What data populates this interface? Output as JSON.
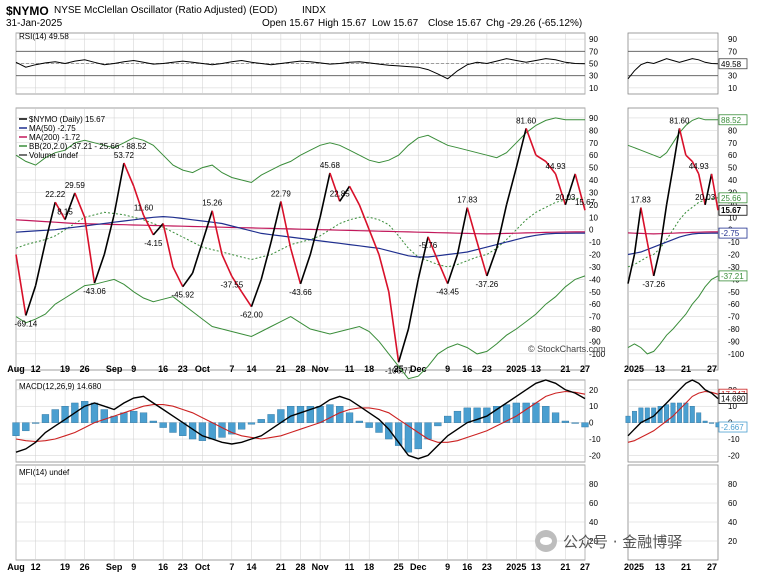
{
  "header": {
    "symbol": "$NYMO",
    "description": "NYSE McClellan Oscillator (Ratio Adjusted) (EOD)",
    "exchange": "INDX",
    "date": "31-Jan-2025",
    "open": "Open 15.67",
    "high": "High 15.67",
    "low": "Low 15.67",
    "close": "Close 15.67",
    "change": "Chg -29.26 (-65.12%)",
    "credit": "© StockCharts.com"
  },
  "colors": {
    "price": "#000000",
    "down": "#d8102a",
    "ma50": "#1f2f8f",
    "ma200": "#c2185b",
    "bb": "#3a8d3a",
    "macd": "#000000",
    "signal": "#cc2222",
    "hist": "#4a9fd0",
    "grid": "#cfcfcf"
  },
  "chart_data": [
    {
      "type": "line",
      "panel": "RSI",
      "label": "RSI(14) 49.58",
      "yticks": [
        90,
        70,
        50,
        30,
        10
      ],
      "ylim": [
        0,
        100
      ],
      "last_value": "49.58",
      "values": [
        52,
        44,
        48,
        51,
        53,
        50,
        54,
        56,
        52,
        48,
        50,
        53,
        55,
        52,
        49,
        50,
        52,
        54,
        52,
        50,
        48,
        50,
        53,
        55,
        52,
        50,
        48,
        50,
        52,
        54,
        53,
        51,
        49,
        50,
        52,
        53,
        51,
        49,
        47,
        46,
        45,
        44,
        40,
        33,
        25,
        38,
        48,
        52,
        50,
        54,
        58,
        55,
        52,
        55,
        58,
        56,
        52,
        50,
        49.58
      ]
    },
    {
      "type": "line",
      "panel": "main",
      "legend": [
        "$NYMO (Daily) 15.67",
        "MA(50) -2.75",
        "MA(200) -1.72",
        "BB(20,2.0) -37.21 - 25.66 - 88.52",
        "Volume undef"
      ],
      "yticks": [
        90,
        80,
        70,
        60,
        50,
        40,
        30,
        20,
        10,
        0,
        -10,
        -20,
        -30,
        -40,
        -50,
        -60,
        -70,
        -80,
        -90,
        -100
      ],
      "ylim": [
        -113,
        98
      ],
      "x_labels": [
        "Aug",
        "12",
        "19",
        "26",
        "Sep",
        "9",
        "16",
        "23",
        "Oct",
        "7",
        "14",
        "21",
        "28",
        "Nov",
        "11",
        "18",
        "25",
        "Dec",
        "9",
        "16",
        "23",
        "2025",
        "13",
        "21",
        "27"
      ],
      "annotations": [
        "-69.14",
        "22.22",
        "8.15",
        "29.59",
        "-43.06",
        "53.72",
        "11.60",
        "-4.15",
        "-45.92",
        "15.26",
        "-37.55",
        "-62.00",
        "22.79",
        "-43.66",
        "45.68",
        "22.85",
        "-106.77",
        "-5.76",
        "-43.45",
        "17.83",
        "-37.26",
        "81.60",
        "44.93",
        "20.03",
        "15.67"
      ],
      "values": [
        -20,
        -69.14,
        -45,
        -10,
        22.22,
        8.15,
        29.59,
        10,
        -43.06,
        -20,
        12,
        53.72,
        35,
        11.6,
        -4.15,
        5,
        -30,
        -45.92,
        -35,
        -10,
        15.26,
        -20,
        -37.55,
        -50,
        -62,
        -40,
        -10,
        22.79,
        -15,
        -43.66,
        -20,
        10,
        45.68,
        22.85,
        35,
        20,
        0,
        -20,
        -50,
        -106.77,
        -80,
        -40,
        -5.76,
        -25,
        -43.45,
        -20,
        17.83,
        -10,
        -37.26,
        -15,
        20,
        50,
        81.6,
        60,
        55,
        44.93,
        20.03,
        44.93,
        15.67
      ],
      "ma50": [
        -2,
        -1.5,
        -1,
        -0.5,
        0,
        1,
        2,
        3,
        4,
        5,
        6,
        7,
        8,
        9,
        10,
        10.5,
        10,
        9,
        8,
        7,
        6,
        5,
        3,
        1,
        -1,
        -3,
        -4,
        -5,
        -6,
        -7,
        -8,
        -9,
        -10,
        -11,
        -12,
        -13,
        -14,
        -15,
        -17,
        -19,
        -21,
        -22,
        -22,
        -21,
        -20,
        -19,
        -18,
        -16,
        -14,
        -12,
        -10,
        -8,
        -6,
        -4.5,
        -3.5,
        -3,
        -2.9,
        -2.8,
        -2.75
      ],
      "ma200": [
        8,
        7.5,
        7,
        6.5,
        6,
        5.5,
        5,
        4.8,
        4.6,
        4.4,
        4.2,
        4,
        3.8,
        3.6,
        3.4,
        3.2,
        3,
        2.8,
        2.6,
        2.4,
        2.2,
        2,
        1.8,
        1.6,
        1.4,
        1.2,
        1,
        0.8,
        0.6,
        0.4,
        0.2,
        0,
        -0.2,
        -0.4,
        -0.6,
        -0.8,
        -1,
        -1.2,
        -1.4,
        -1.6,
        -1.8,
        -2,
        -2.2,
        -2.4,
        -2.6,
        -2.8,
        -3,
        -3.2,
        -3.4,
        -3.2,
        -3,
        -2.8,
        -2.6,
        -2.4,
        -2.2,
        -2,
        -1.9,
        -1.8,
        -1.72
      ],
      "bb_upper": [
        60,
        55,
        52,
        58,
        62,
        64,
        70,
        72,
        70,
        68,
        66,
        70,
        74,
        72,
        68,
        60,
        52,
        48,
        46,
        50,
        52,
        46,
        42,
        40,
        38,
        44,
        48,
        52,
        55,
        60,
        64,
        68,
        70,
        68,
        64,
        60,
        56,
        54,
        56,
        60,
        68,
        74,
        76,
        72,
        68,
        66,
        64,
        62,
        60,
        58,
        62,
        70,
        78,
        84,
        88,
        90,
        88.52,
        88.52,
        88.52
      ],
      "bb_middle": [
        -15,
        -12,
        -10,
        -8,
        -5,
        0,
        5,
        10,
        12,
        14,
        13,
        12,
        10,
        8,
        5,
        2,
        -2,
        -6,
        -10,
        -14,
        -16,
        -18,
        -20,
        -22,
        -24,
        -22,
        -20,
        -16,
        -12,
        -10,
        -8,
        -5,
        0,
        5,
        8,
        10,
        10,
        8,
        4,
        -5,
        -15,
        -22,
        -25,
        -28,
        -30,
        -28,
        -25,
        -22,
        -20,
        -15,
        -8,
        0,
        8,
        14,
        18,
        22,
        24,
        25,
        25.66
      ],
      "bb_lower": [
        -70,
        -75,
        -72,
        -68,
        -60,
        -55,
        -50,
        -45,
        -44,
        -42,
        -40,
        -44,
        -50,
        -55,
        -58,
        -56,
        -54,
        -60,
        -66,
        -72,
        -78,
        -80,
        -82,
        -84,
        -86,
        -82,
        -78,
        -74,
        -70,
        -75,
        -80,
        -82,
        -84,
        -82,
        -80,
        -78,
        -82,
        -90,
        -100,
        -110,
        -120,
        -118,
        -110,
        -100,
        -95,
        -92,
        -95,
        -100,
        -98,
        -92,
        -85,
        -80,
        -74,
        -68,
        -60,
        -54,
        -46,
        -40,
        -37.21
      ]
    },
    {
      "type": "bar",
      "panel": "MACD",
      "label": "MACD(12,26,9) 14.680, 17.347, -2.667",
      "yticks": [
        20,
        10,
        0,
        -10,
        -20
      ],
      "ylim": [
        -24,
        26
      ],
      "values": {
        "macd": [
          -18,
          -16,
          -12,
          -6,
          -2,
          2,
          6,
          10,
          12,
          10,
          8,
          12,
          15,
          16,
          12,
          8,
          4,
          0,
          -4,
          -8,
          -10,
          -12,
          -13,
          -12,
          -10,
          -8,
          -4,
          0,
          4,
          6,
          8,
          10,
          14,
          16,
          14,
          10,
          6,
          2,
          -4,
          -12,
          -20,
          -22,
          -20,
          -14,
          -8,
          -4,
          0,
          2,
          4,
          8,
          12,
          16,
          20,
          24,
          26,
          24,
          20,
          18,
          14.68
        ],
        "signal": [
          -10,
          -11,
          -11.5,
          -11,
          -10,
          -8,
          -6,
          -3,
          0,
          2,
          4,
          6,
          8,
          10,
          11,
          11,
          10,
          8,
          6,
          3,
          0,
          -3,
          -6,
          -8,
          -9,
          -10,
          -9,
          -8,
          -6,
          -4,
          -2,
          0,
          3,
          6,
          8,
          9,
          9,
          8,
          6,
          2,
          -2,
          -6,
          -10,
          -12,
          -12,
          -11,
          -9,
          -7,
          -5,
          -2,
          1,
          4,
          8,
          12,
          16,
          18,
          19,
          18.5,
          17.347
        ],
        "histogram": [
          -8,
          -5,
          -0.5,
          5,
          8,
          10,
          12,
          13,
          12,
          8,
          4,
          6,
          7,
          6,
          1,
          -3,
          -6,
          -8,
          -10,
          -11,
          -10,
          -9,
          -7,
          -4,
          -1,
          2,
          5,
          8,
          10,
          10,
          10,
          10,
          11,
          10,
          6,
          1,
          -3,
          -6,
          -10,
          -14,
          -18,
          -16,
          -10,
          -2,
          4,
          7,
          9,
          9,
          9,
          10,
          11,
          12,
          12,
          12,
          10,
          6,
          1,
          -0.5,
          -2.667
        ]
      }
    },
    {
      "type": "line",
      "panel": "MFI",
      "label": "MFI(14) undef",
      "yticks": [
        80,
        60,
        40,
        20
      ],
      "ylim": [
        0,
        100
      ],
      "values": []
    }
  ],
  "zoom": {
    "x_labels": [
      "2025",
      "13",
      "21",
      "27"
    ],
    "annotations": [
      "17.83",
      "-37.26",
      "81.60",
      "44.93",
      "20.03"
    ],
    "right_tags": [
      "49.58",
      "88.52",
      "25.66",
      "15.67",
      "-2.75",
      "-37.21",
      "17.347",
      "14.680",
      "-2.667"
    ]
  },
  "watermark": "公众号 · 金融博驿"
}
